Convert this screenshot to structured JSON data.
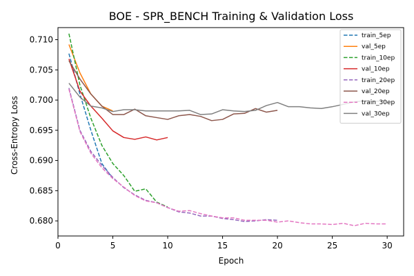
{
  "chart_data": {
    "type": "line",
    "title": "BOE - SPR_BENCH Training & Validation Loss",
    "xlabel": "Epoch",
    "ylabel": "Cross-Entropy Loss",
    "xlim": [
      0,
      31.5
    ],
    "ylim": [
      0.6775,
      0.712
    ],
    "xticks": [
      0,
      5,
      10,
      15,
      20,
      25,
      30
    ],
    "yticks": [
      0.68,
      0.685,
      0.69,
      0.695,
      0.7,
      0.705,
      0.71
    ],
    "ytick_labels": [
      "0.680",
      "0.685",
      "0.690",
      "0.695",
      "0.700",
      "0.705",
      "0.710"
    ],
    "legend_position": "top-right",
    "series": [
      {
        "name": "train_5ep",
        "color": "#1f77b4",
        "dashed": true,
        "x": [
          1,
          2,
          3,
          4,
          5
        ],
        "y": [
          0.7077,
          0.701,
          0.695,
          0.6895,
          0.687
        ]
      },
      {
        "name": "val_5ep",
        "color": "#ff7f0e",
        "dashed": false,
        "x": [
          1,
          2,
          3,
          4,
          5
        ],
        "y": [
          0.7092,
          0.7045,
          0.701,
          0.699,
          0.6982
        ]
      },
      {
        "name": "train_10ep",
        "color": "#2ca02c",
        "dashed": true,
        "x": [
          1,
          2,
          3,
          4,
          5,
          6,
          7,
          8,
          9,
          10
        ],
        "y": [
          0.711,
          0.7025,
          0.697,
          0.6925,
          0.6895,
          0.6875,
          0.6849,
          0.6853,
          0.6831,
          0.6823
        ]
      },
      {
        "name": "val_10ep",
        "color": "#d62728",
        "dashed": false,
        "x": [
          1,
          2,
          3,
          4,
          5,
          6,
          7,
          8,
          9,
          10
        ],
        "y": [
          0.7068,
          0.7015,
          0.699,
          0.697,
          0.6949,
          0.6938,
          0.6935,
          0.6939,
          0.6934,
          0.6938
        ]
      },
      {
        "name": "train_20ep",
        "color": "#9467bd",
        "dashed": true,
        "x": [
          1,
          2,
          3,
          4,
          5,
          6,
          7,
          8,
          9,
          10,
          11,
          12,
          13,
          14,
          15,
          16,
          17,
          18,
          19,
          20
        ],
        "y": [
          0.702,
          0.695,
          0.6915,
          0.6892,
          0.6872,
          0.6855,
          0.6843,
          0.6834,
          0.683,
          0.6822,
          0.6815,
          0.6813,
          0.6808,
          0.6808,
          0.6804,
          0.6802,
          0.6799,
          0.68,
          0.6802,
          0.6801
        ]
      },
      {
        "name": "val_20ep",
        "color": "#8c564b",
        "dashed": false,
        "x": [
          1,
          2,
          3,
          4,
          5,
          6,
          7,
          8,
          9,
          10,
          11,
          12,
          13,
          14,
          15,
          16,
          17,
          18,
          19,
          20
        ],
        "y": [
          0.7065,
          0.7035,
          0.701,
          0.699,
          0.6976,
          0.6976,
          0.6985,
          0.6974,
          0.6971,
          0.6968,
          0.6974,
          0.6976,
          0.6973,
          0.6966,
          0.6968,
          0.6977,
          0.6978,
          0.6986,
          0.698,
          0.6983
        ]
      },
      {
        "name": "train_30ep",
        "color": "#e377c2",
        "dashed": true,
        "x": [
          1,
          2,
          3,
          4,
          5,
          6,
          7,
          8,
          9,
          10,
          11,
          12,
          13,
          14,
          15,
          16,
          17,
          18,
          19,
          20,
          21,
          22,
          23,
          24,
          25,
          26,
          27,
          28,
          29,
          30
        ],
        "y": [
          0.7018,
          0.6948,
          0.6912,
          0.6888,
          0.687,
          0.6856,
          0.6842,
          0.6833,
          0.683,
          0.6822,
          0.6816,
          0.6817,
          0.6812,
          0.6808,
          0.6805,
          0.6805,
          0.6801,
          0.6801,
          0.6801,
          0.6798,
          0.68,
          0.6797,
          0.6795,
          0.6795,
          0.6794,
          0.6796,
          0.6792,
          0.6796,
          0.6795,
          0.6795
        ]
      },
      {
        "name": "val_30ep",
        "color": "#7f7f7f",
        "dashed": false,
        "x": [
          1,
          2,
          3,
          4,
          5,
          6,
          7,
          8,
          9,
          10,
          11,
          12,
          13,
          14,
          15,
          16,
          17,
          18,
          19,
          20,
          21,
          22,
          23,
          24,
          25,
          26,
          27,
          28,
          29,
          30
        ],
        "y": [
          0.7028,
          0.7005,
          0.699,
          0.6987,
          0.6981,
          0.6984,
          0.6984,
          0.6982,
          0.6982,
          0.6982,
          0.6982,
          0.6983,
          0.6976,
          0.6977,
          0.6984,
          0.6982,
          0.6981,
          0.6983,
          0.6991,
          0.6996,
          0.6989,
          0.6989,
          0.6987,
          0.6986,
          0.6989,
          0.6993,
          0.6997,
          0.6999,
          0.6998,
          0.6999
        ]
      }
    ]
  }
}
